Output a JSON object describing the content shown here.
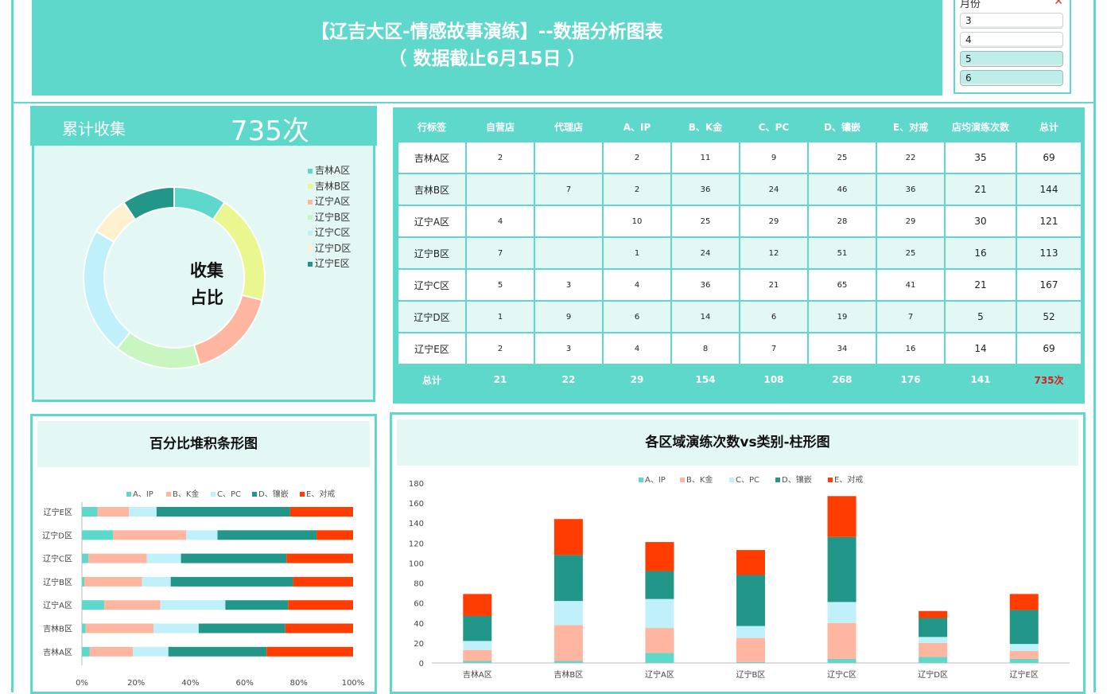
{
  "header": {
    "title_line1": "【辽吉大区-情感故事演练】--数据分析图表",
    "title_line2": "（ 数据截止6月15日 ）"
  },
  "slicer": {
    "header": "月份",
    "clear_icon": "filter-clear-icon",
    "items": [
      {
        "label": "3",
        "selected": false
      },
      {
        "label": "4",
        "selected": false
      },
      {
        "label": "5",
        "selected": true
      },
      {
        "label": "6",
        "selected": true
      }
    ]
  },
  "kpi": {
    "label": "累计收集",
    "value": "735次",
    "donut_center_line1": "收集",
    "donut_center_line2": "占比"
  },
  "colors": {
    "primary": "#5fd8cc",
    "light_bg": "#e3f7f4",
    "grand_total_red": "#d62020",
    "region_colors": [
      "#5fd8cc",
      "#eaf68e",
      "#ffb6a0",
      "#c8f5c0",
      "#c0f1fb",
      "#fff0d0",
      "#23968a"
    ],
    "category_colors": [
      "#5fd8cc",
      "#ffb6a0",
      "#c0f1fb",
      "#23968a",
      "#ff3d00"
    ]
  },
  "table": {
    "headers": [
      "行标签",
      "自营店",
      "代理店",
      "A、IP",
      "B、K金",
      "C、PC",
      "D、镶嵌",
      "E、对戒",
      "店均演练次数",
      "总计"
    ],
    "rows": [
      [
        "吉林A区",
        "2",
        "",
        "2",
        "11",
        "9",
        "25",
        "22",
        "35",
        "69"
      ],
      [
        "吉林B区",
        "",
        "7",
        "2",
        "36",
        "24",
        "46",
        "36",
        "21",
        "144"
      ],
      [
        "辽宁A区",
        "4",
        "",
        "10",
        "25",
        "29",
        "28",
        "29",
        "30",
        "121"
      ],
      [
        "辽宁B区",
        "7",
        "",
        "1",
        "24",
        "12",
        "51",
        "25",
        "16",
        "113"
      ],
      [
        "辽宁C区",
        "5",
        "3",
        "4",
        "36",
        "21",
        "65",
        "41",
        "21",
        "167"
      ],
      [
        "辽宁D区",
        "1",
        "9",
        "6",
        "14",
        "6",
        "19",
        "7",
        "5",
        "52"
      ],
      [
        "辽宁E区",
        "2",
        "3",
        "4",
        "8",
        "7",
        "34",
        "16",
        "14",
        "69"
      ]
    ],
    "total_row": [
      "总计",
      "21",
      "22",
      "29",
      "154",
      "108",
      "268",
      "176",
      "141",
      "735次"
    ]
  },
  "bar_panel": {
    "title": "百分比堆积条形图"
  },
  "column_panel": {
    "title": "各区域演练次数vs类别-柱形图"
  },
  "chart_data": [
    {
      "type": "pie",
      "variant": "donut",
      "legend_position": "right",
      "labels": [
        "吉林A区",
        "吉林B区",
        "辽宁A区",
        "辽宁B区",
        "辽宁C区",
        "辽宁D区",
        "辽宁E区"
      ],
      "values": [
        69,
        144,
        121,
        113,
        167,
        52,
        69
      ]
    },
    {
      "type": "bar",
      "orientation": "horizontal",
      "stacked": "percent",
      "legend_position": "top",
      "categories": [
        "辽宁E区",
        "辽宁D区",
        "辽宁C区",
        "辽宁B区",
        "辽宁A区",
        "吉林B区",
        "吉林A区"
      ],
      "series": [
        {
          "name": "A、IP",
          "values": [
            4,
            6,
            4,
            1,
            10,
            2,
            2
          ]
        },
        {
          "name": "B、K金",
          "values": [
            8,
            14,
            36,
            24,
            25,
            36,
            11
          ]
        },
        {
          "name": "C、PC",
          "values": [
            7,
            6,
            21,
            12,
            29,
            24,
            9
          ]
        },
        {
          "name": "D、镶嵌",
          "values": [
            34,
            19,
            65,
            51,
            28,
            46,
            25
          ]
        },
        {
          "name": "E、对戒",
          "values": [
            16,
            7,
            41,
            25,
            29,
            36,
            22
          ]
        }
      ],
      "xticks": [
        "0%",
        "20%",
        "40%",
        "60%",
        "80%",
        "100%"
      ]
    },
    {
      "type": "bar",
      "orientation": "vertical",
      "stacked": true,
      "legend_position": "top",
      "categories": [
        "吉林A区",
        "吉林B区",
        "辽宁A区",
        "辽宁B区",
        "辽宁C区",
        "辽宁D区",
        "辽宁E区"
      ],
      "series": [
        {
          "name": "A、IP",
          "values": [
            2,
            2,
            10,
            1,
            4,
            6,
            4
          ]
        },
        {
          "name": "B、K金",
          "values": [
            11,
            36,
            25,
            24,
            36,
            14,
            8
          ]
        },
        {
          "name": "C、PC",
          "values": [
            9,
            24,
            29,
            12,
            21,
            6,
            7
          ]
        },
        {
          "name": "D、镶嵌",
          "values": [
            25,
            46,
            28,
            51,
            65,
            19,
            34
          ]
        },
        {
          "name": "E、对戒",
          "values": [
            22,
            36,
            29,
            25,
            41,
            7,
            16
          ]
        }
      ],
      "ylim": [
        0,
        180
      ],
      "yticks": [
        "0",
        "20",
        "40",
        "60",
        "80",
        "100",
        "120",
        "140",
        "160",
        "180"
      ]
    }
  ]
}
